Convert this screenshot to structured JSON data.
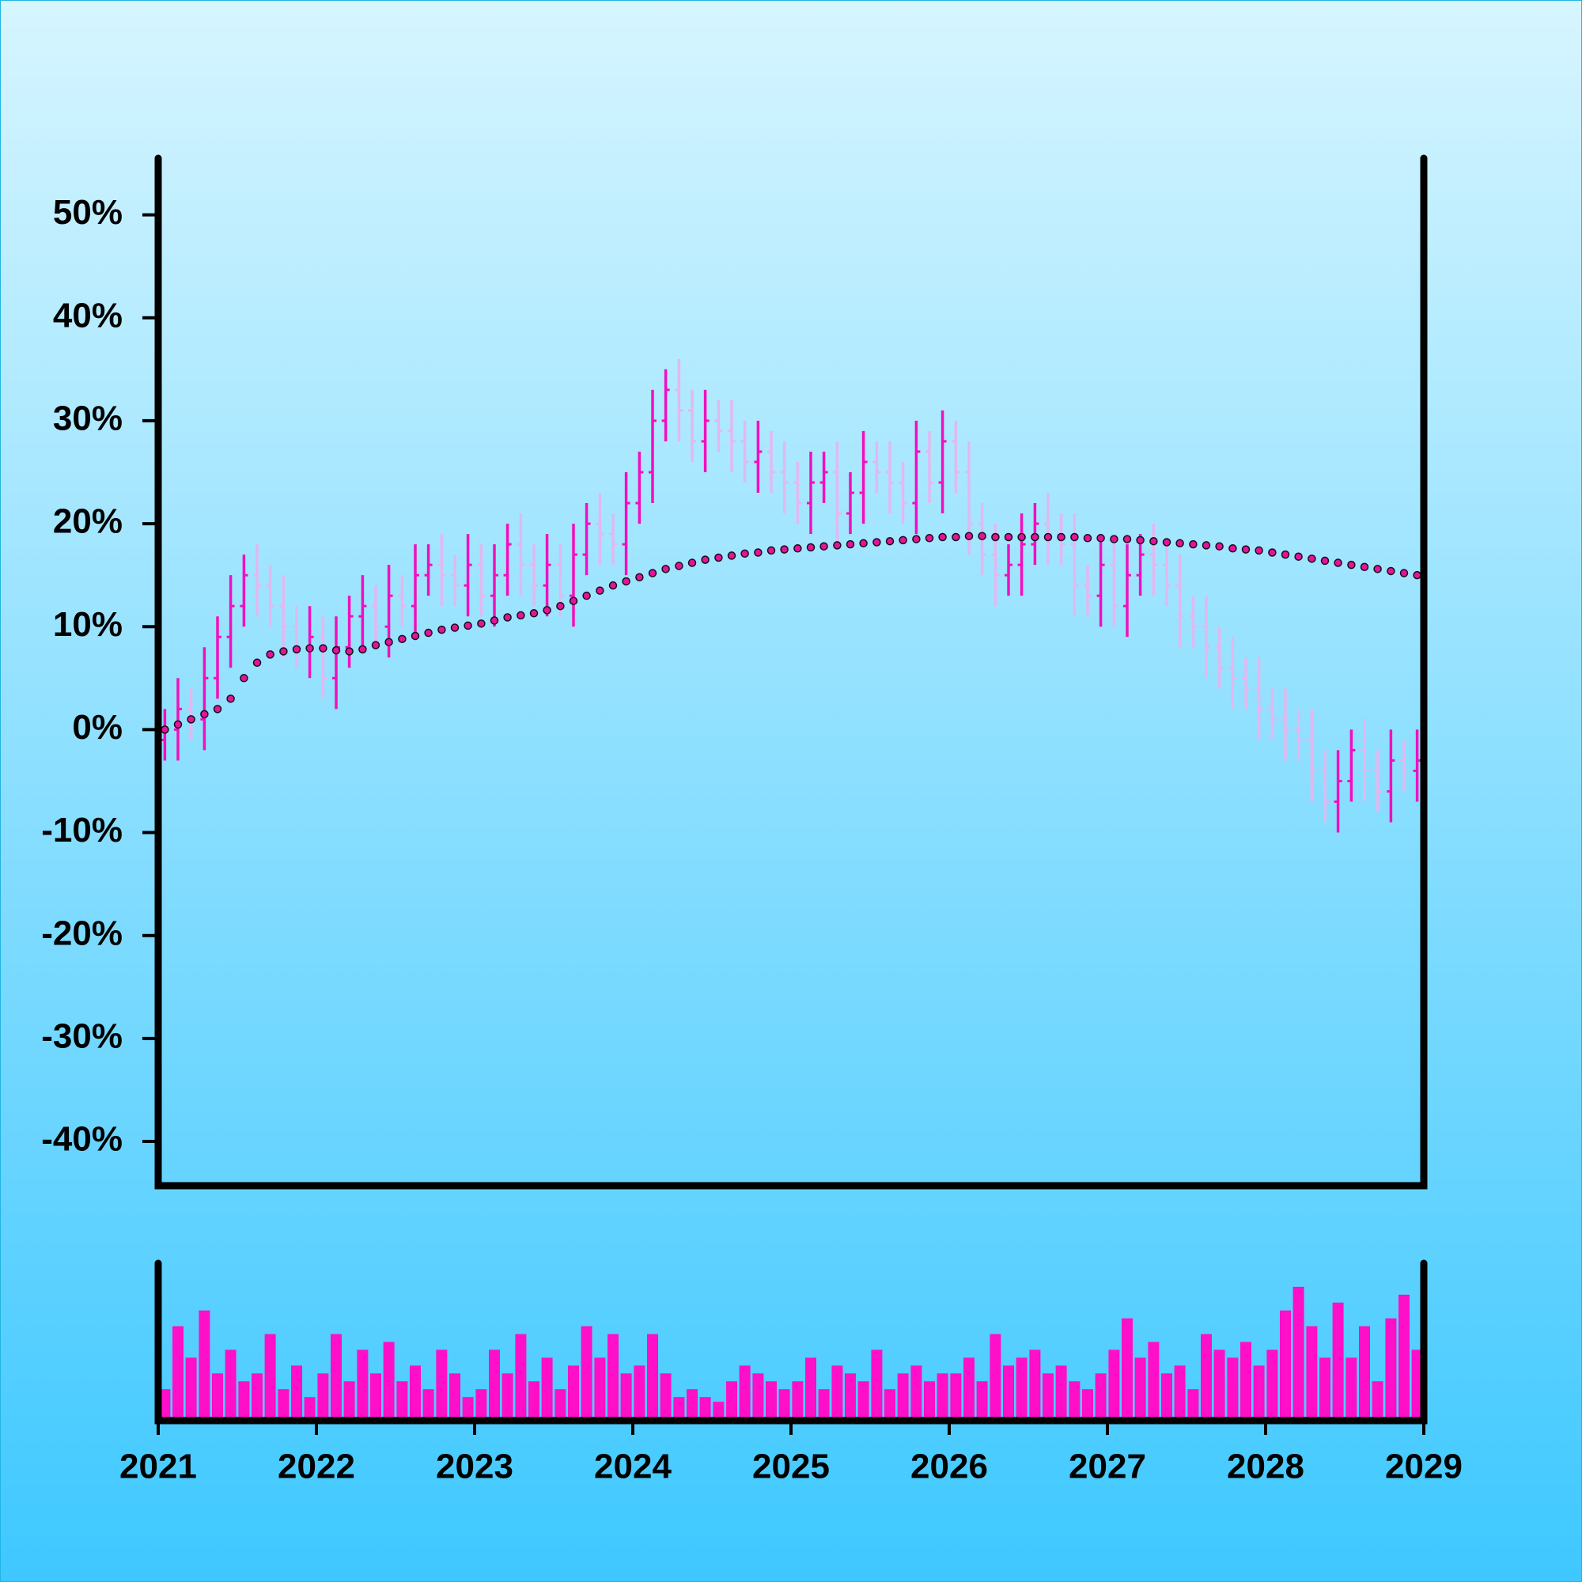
{
  "chart_data": {
    "type": "ohlc",
    "x": [
      2021.042,
      2021.125,
      2021.208,
      2021.292,
      2021.375,
      2021.458,
      2021.542,
      2021.625,
      2021.708,
      2021.792,
      2021.875,
      2021.958,
      2022.042,
      2022.125,
      2022.208,
      2022.292,
      2022.375,
      2022.458,
      2022.542,
      2022.625,
      2022.708,
      2022.792,
      2022.875,
      2022.958,
      2023.042,
      2023.125,
      2023.208,
      2023.292,
      2023.375,
      2023.458,
      2023.542,
      2023.625,
      2023.708,
      2023.792,
      2023.875,
      2023.958,
      2024.042,
      2024.125,
      2024.208,
      2024.292,
      2024.375,
      2024.458,
      2024.542,
      2024.625,
      2024.708,
      2024.792,
      2024.875,
      2024.958,
      2025.042,
      2025.125,
      2025.208,
      2025.292,
      2025.375,
      2025.458,
      2025.542,
      2025.625,
      2025.708,
      2025.792,
      2025.875,
      2025.958,
      2026.042,
      2026.125,
      2026.208,
      2026.292,
      2026.375,
      2026.458,
      2026.542,
      2026.625,
      2026.708,
      2026.792,
      2026.875,
      2026.958,
      2027.042,
      2027.125,
      2027.208,
      2027.292,
      2027.375,
      2027.458,
      2027.542,
      2027.625,
      2027.708,
      2027.792,
      2027.875,
      2027.958,
      2028.042,
      2028.125,
      2028.208,
      2028.292,
      2028.375,
      2028.458,
      2028.542,
      2028.625,
      2028.708,
      2028.792,
      2028.875,
      2028.958
    ],
    "open": [
      -1,
      0,
      2,
      1,
      5,
      9,
      12,
      15,
      14,
      12,
      10,
      8,
      9,
      5,
      8,
      11,
      12,
      10,
      13,
      12,
      15,
      16,
      15,
      14,
      16,
      13,
      15,
      18,
      16,
      14,
      16,
      13,
      17,
      20,
      19,
      18,
      22,
      25,
      30,
      33,
      31,
      28,
      30,
      29,
      28,
      26,
      27,
      25,
      24,
      22,
      24,
      25,
      21,
      23,
      26,
      25,
      24,
      22,
      27,
      24,
      28,
      25,
      20,
      17,
      15,
      16,
      18,
      20,
      19,
      18,
      14,
      13,
      16,
      12,
      15,
      17,
      16,
      14,
      11,
      10,
      8,
      6,
      5,
      4,
      2,
      1,
      0,
      -1,
      -4,
      -7,
      -5,
      -2,
      -4,
      -6,
      -3,
      -4
    ],
    "high": [
      2,
      5,
      4,
      8,
      11,
      15,
      17,
      18,
      16,
      15,
      12,
      12,
      11,
      11,
      13,
      15,
      14,
      16,
      15,
      18,
      18,
      19,
      17,
      19,
      18,
      18,
      20,
      21,
      18,
      19,
      18,
      20,
      22,
      23,
      21,
      25,
      27,
      33,
      35,
      36,
      33,
      33,
      32,
      32,
      30,
      30,
      29,
      28,
      26,
      27,
      27,
      28,
      25,
      29,
      28,
      28,
      26,
      30,
      29,
      31,
      30,
      28,
      22,
      20,
      18,
      21,
      22,
      23,
      21,
      21,
      16,
      19,
      18,
      18,
      19,
      20,
      18,
      17,
      13,
      13,
      10,
      9,
      7,
      7,
      4,
      4,
      2,
      2,
      -2,
      -2,
      0,
      1,
      -2,
      0,
      -1,
      0
    ],
    "low": [
      -3,
      -3,
      -1,
      -2,
      3,
      6,
      10,
      11,
      10,
      7,
      6,
      5,
      3,
      2,
      6,
      8,
      8,
      7,
      10,
      9,
      13,
      12,
      12,
      11,
      11,
      10,
      13,
      13,
      12,
      11,
      11,
      10,
      15,
      16,
      16,
      15,
      20,
      22,
      28,
      28,
      26,
      25,
      27,
      25,
      24,
      23,
      23,
      21,
      20,
      19,
      22,
      18,
      19,
      20,
      23,
      21,
      20,
      19,
      22,
      21,
      23,
      17,
      15,
      12,
      13,
      13,
      16,
      16,
      16,
      11,
      11,
      10,
      10,
      9,
      13,
      13,
      12,
      8,
      8,
      5,
      4,
      2,
      2,
      -1,
      -1,
      -3,
      -3,
      -7,
      -9,
      -10,
      -7,
      -7,
      -8,
      -9,
      -6,
      -7
    ],
    "close": [
      0,
      2,
      1,
      5,
      9,
      12,
      15,
      14,
      12,
      10,
      8,
      9,
      5,
      8,
      11,
      12,
      10,
      13,
      12,
      15,
      16,
      15,
      14,
      16,
      13,
      15,
      18,
      16,
      14,
      16,
      13,
      17,
      20,
      19,
      18,
      22,
      25,
      30,
      33,
      31,
      28,
      30,
      29,
      28,
      26,
      27,
      25,
      24,
      22,
      24,
      25,
      21,
      23,
      26,
      25,
      24,
      22,
      27,
      24,
      28,
      25,
      20,
      17,
      15,
      16,
      18,
      20,
      19,
      18,
      14,
      13,
      16,
      12,
      15,
      17,
      16,
      14,
      11,
      10,
      8,
      6,
      5,
      4,
      2,
      1,
      0,
      -1,
      -4,
      -7,
      -5,
      -2,
      -4,
      -6,
      -3,
      -4,
      -3
    ],
    "up_color": "#f20fbf",
    "down_color": "#e2b8f0",
    "moving_average": {
      "color": "#e6119e",
      "values": [
        0,
        0.5,
        1,
        1.5,
        2,
        3,
        5,
        6.5,
        7.3,
        7.6,
        7.8,
        7.9,
        7.9,
        7.7,
        7.6,
        7.8,
        8.2,
        8.5,
        8.8,
        9.1,
        9.4,
        9.7,
        9.9,
        10.1,
        10.3,
        10.6,
        10.9,
        11.1,
        11.3,
        11.6,
        12,
        12.5,
        13,
        13.5,
        14,
        14.4,
        14.8,
        15.2,
        15.6,
        15.9,
        16.2,
        16.5,
        16.7,
        16.9,
        17.1,
        17.2,
        17.4,
        17.5,
        17.6,
        17.7,
        17.8,
        17.9,
        18,
        18.1,
        18.2,
        18.3,
        18.4,
        18.5,
        18.6,
        18.7,
        18.7,
        18.8,
        18.8,
        18.7,
        18.7,
        18.7,
        18.7,
        18.7,
        18.7,
        18.7,
        18.6,
        18.6,
        18.5,
        18.5,
        18.4,
        18.3,
        18.2,
        18.1,
        18,
        17.9,
        17.8,
        17.6,
        17.5,
        17.4,
        17.2,
        17,
        16.8,
        16.6,
        16.4,
        16.2,
        16,
        15.8,
        15.6,
        15.4,
        15.2,
        15
      ]
    },
    "volume": {
      "color": "#ff0fc8",
      "ylim": [
        0,
        100
      ],
      "values": [
        20,
        60,
        40,
        70,
        30,
        45,
        25,
        30,
        55,
        20,
        35,
        15,
        30,
        55,
        25,
        45,
        30,
        50,
        25,
        35,
        20,
        45,
        30,
        15,
        20,
        45,
        30,
        55,
        25,
        40,
        20,
        35,
        60,
        40,
        55,
        30,
        35,
        55,
        30,
        15,
        20,
        15,
        12,
        25,
        35,
        30,
        25,
        20,
        25,
        40,
        20,
        35,
        30,
        25,
        45,
        20,
        30,
        35,
        25,
        30,
        30,
        40,
        25,
        55,
        35,
        40,
        45,
        30,
        35,
        25,
        20,
        30,
        45,
        65,
        40,
        50,
        30,
        35,
        20,
        55,
        45,
        40,
        50,
        35,
        45,
        70,
        85,
        60,
        40,
        75,
        40,
        60,
        25,
        65,
        80,
        45
      ]
    },
    "xlim": [
      2021,
      2029
    ],
    "xticks": [
      2021,
      2022,
      2023,
      2024,
      2025,
      2026,
      2027,
      2028,
      2029
    ],
    "ylim": [
      -44.3,
      55.5
    ],
    "yticks": [
      {
        "value": -40,
        "label": "-40%"
      },
      {
        "value": -30,
        "label": "-30%"
      },
      {
        "value": -20,
        "label": "-20%"
      },
      {
        "value": -10,
        "label": "-10%"
      },
      {
        "value": 0,
        "label": "0%"
      },
      {
        "value": 10,
        "label": "10%"
      },
      {
        "value": 20,
        "label": "20%"
      },
      {
        "value": 30,
        "label": "30%"
      },
      {
        "value": 40,
        "label": "40%"
      },
      {
        "value": 50,
        "label": "50%"
      }
    ]
  }
}
